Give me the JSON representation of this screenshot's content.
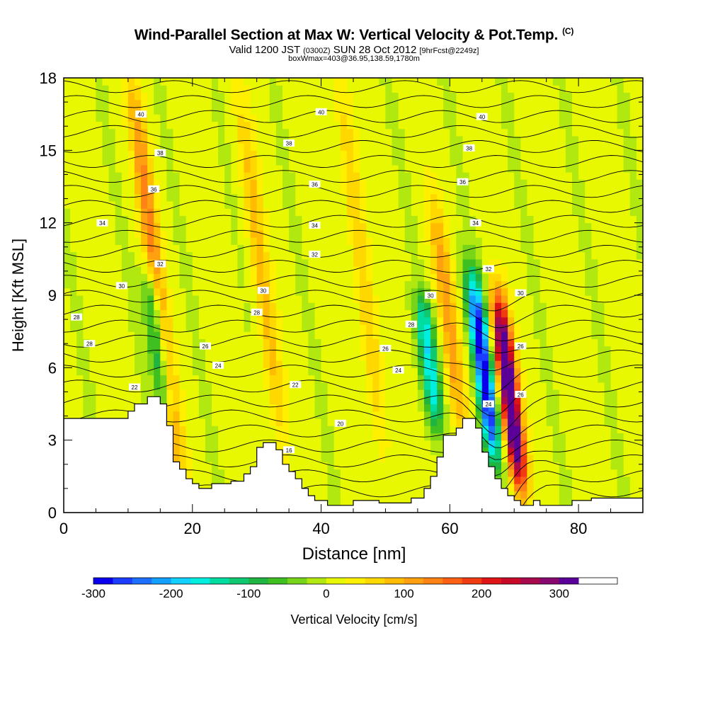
{
  "header": {
    "title": "Wind-Parallel Section at Max W: Vertical Velocity & Pot.Temp.",
    "copyright": "(C)",
    "valid_main": "Valid 1200 JST",
    "valid_utc": "(0300Z)",
    "valid_date": "SUN 28 Oct 2012",
    "forecast": "[9hrFcst@2249z]",
    "box_info": "boxWmax=403@36.95,138.59,1780m"
  },
  "chart_data": {
    "type": "contour",
    "title": "Wind-Parallel Section at Max W: Vertical Velocity & Pot.Temp.",
    "xlabel": "Distance [nm]",
    "ylabel": "Height [Kft MSL]",
    "xlim": [
      0,
      90
    ],
    "ylim": [
      0,
      18
    ],
    "x_ticks": [
      0,
      20,
      40,
      60,
      80
    ],
    "y_ticks": [
      0,
      3,
      6,
      9,
      12,
      15,
      18
    ],
    "colorbar": {
      "label": "Vertical Velocity [cm/s]",
      "range": [
        -300,
        375
      ],
      "step": 25,
      "tick_labels": [
        -300,
        -200,
        -100,
        0,
        100,
        200,
        300
      ],
      "colors": [
        "#0a00ee",
        "#1c3cff",
        "#1d70ff",
        "#12a0ff",
        "#12d0ff",
        "#00eee0",
        "#00dca0",
        "#10c870",
        "#20b440",
        "#40c020",
        "#78d418",
        "#b0e810",
        "#e8f800",
        "#fff000",
        "#ffd800",
        "#ffbc00",
        "#ffa010",
        "#ff8214",
        "#ff6014",
        "#f03c10",
        "#e01414",
        "#c80a28",
        "#a8084c",
        "#880870",
        "#5a0098"
      ]
    },
    "terrain_kft": [
      [
        0,
        3.9
      ],
      [
        10,
        3.9
      ],
      [
        10,
        4.2
      ],
      [
        11,
        4.2
      ],
      [
        11,
        4.5
      ],
      [
        13,
        4.5
      ],
      [
        13,
        4.8
      ],
      [
        15,
        4.8
      ],
      [
        15,
        4.5
      ],
      [
        16,
        4.5
      ],
      [
        16,
        3.6
      ],
      [
        17,
        3.6
      ],
      [
        17,
        2.1
      ],
      [
        18,
        2.1
      ],
      [
        18,
        1.8
      ],
      [
        19,
        1.8
      ],
      [
        19,
        1.4
      ],
      [
        20,
        1.4
      ],
      [
        20,
        1.2
      ],
      [
        21,
        1.2
      ],
      [
        21,
        1.0
      ],
      [
        23,
        1.0
      ],
      [
        23,
        1.2
      ],
      [
        26,
        1.2
      ],
      [
        26,
        1.3
      ],
      [
        28,
        1.3
      ],
      [
        28,
        1.6
      ],
      [
        29,
        1.6
      ],
      [
        29,
        1.9
      ],
      [
        30,
        1.9
      ],
      [
        30,
        2.7
      ],
      [
        31,
        2.7
      ],
      [
        31,
        2.9
      ],
      [
        33,
        2.9
      ],
      [
        33,
        2.6
      ],
      [
        34,
        2.6
      ],
      [
        34,
        2.0
      ],
      [
        35,
        2.0
      ],
      [
        35,
        1.7
      ],
      [
        36,
        1.7
      ],
      [
        36,
        1.4
      ],
      [
        37,
        1.4
      ],
      [
        37,
        1.0
      ],
      [
        38,
        1.0
      ],
      [
        38,
        0.7
      ],
      [
        39,
        0.7
      ],
      [
        39,
        0.5
      ],
      [
        41,
        0.5
      ],
      [
        41,
        0.3
      ],
      [
        45,
        0.3
      ],
      [
        45,
        0.5
      ],
      [
        49,
        0.5
      ],
      [
        49,
        0.4
      ],
      [
        54,
        0.4
      ],
      [
        54,
        0.6
      ],
      [
        56,
        0.6
      ],
      [
        56,
        1.0
      ],
      [
        57,
        1.0
      ],
      [
        57,
        1.5
      ],
      [
        58,
        1.5
      ],
      [
        58,
        2.3
      ],
      [
        59,
        2.3
      ],
      [
        59,
        3.2
      ],
      [
        61,
        3.2
      ],
      [
        61,
        3.5
      ],
      [
        62,
        3.5
      ],
      [
        62,
        3.9
      ],
      [
        64,
        3.9
      ],
      [
        64,
        3.5
      ],
      [
        65,
        3.5
      ],
      [
        65,
        2.5
      ],
      [
        66,
        2.5
      ],
      [
        66,
        1.9
      ],
      [
        67,
        1.9
      ],
      [
        67,
        1.4
      ],
      [
        68,
        1.4
      ],
      [
        68,
        1.0
      ],
      [
        69,
        1.0
      ],
      [
        69,
        0.7
      ],
      [
        70,
        0.7
      ],
      [
        70,
        0.5
      ],
      [
        71,
        0.5
      ],
      [
        71,
        0.3
      ],
      [
        73,
        0.3
      ],
      [
        73,
        0.5
      ],
      [
        74,
        0.5
      ],
      [
        74,
        0.3
      ],
      [
        79,
        0.3
      ],
      [
        79,
        0.5
      ],
      [
        82,
        0.5
      ],
      [
        82,
        0.6
      ],
      [
        90,
        0.6
      ]
    ],
    "theta_levels_labeled": [
      16,
      20,
      22,
      24,
      26,
      28,
      30,
      32,
      34,
      36,
      38,
      40
    ],
    "theta_labels": [
      {
        "text": "40",
        "x": 12,
        "y": 16.5
      },
      {
        "text": "40",
        "x": 40,
        "y": 16.6
      },
      {
        "text": "40",
        "x": 65,
        "y": 16.4
      },
      {
        "text": "38",
        "x": 15,
        "y": 14.9
      },
      {
        "text": "38",
        "x": 35,
        "y": 15.3
      },
      {
        "text": "38",
        "x": 63,
        "y": 15.1
      },
      {
        "text": "36",
        "x": 14,
        "y": 13.4
      },
      {
        "text": "36",
        "x": 39,
        "y": 13.6
      },
      {
        "text": "36",
        "x": 62,
        "y": 13.7
      },
      {
        "text": "34",
        "x": 6,
        "y": 12.0
      },
      {
        "text": "34",
        "x": 39,
        "y": 11.9
      },
      {
        "text": "34",
        "x": 64,
        "y": 12.0
      },
      {
        "text": "32",
        "x": 15,
        "y": 10.3
      },
      {
        "text": "32",
        "x": 39,
        "y": 10.7
      },
      {
        "text": "32",
        "x": 66,
        "y": 10.1
      },
      {
        "text": "30",
        "x": 9,
        "y": 9.4
      },
      {
        "text": "30",
        "x": 31,
        "y": 9.2
      },
      {
        "text": "30",
        "x": 57,
        "y": 9.0
      },
      {
        "text": "30",
        "x": 71,
        "y": 9.1
      },
      {
        "text": "28",
        "x": 2,
        "y": 8.1
      },
      {
        "text": "28",
        "x": 30,
        "y": 8.3
      },
      {
        "text": "28",
        "x": 54,
        "y": 7.8
      },
      {
        "text": "28",
        "x": 4,
        "y": 7.0
      },
      {
        "text": "26",
        "x": 22,
        "y": 6.9
      },
      {
        "text": "26",
        "x": 50,
        "y": 6.8
      },
      {
        "text": "26",
        "x": 71,
        "y": 6.9
      },
      {
        "text": "24",
        "x": 24,
        "y": 6.1
      },
      {
        "text": "24",
        "x": 52,
        "y": 5.9
      },
      {
        "text": "24",
        "x": 66,
        "y": 4.5
      },
      {
        "text": "26",
        "x": 71,
        "y": 4.9
      },
      {
        "text": "22",
        "x": 36,
        "y": 5.3
      },
      {
        "text": "22",
        "x": 11,
        "y": 5.2
      },
      {
        "text": "20",
        "x": 43,
        "y": 3.7
      },
      {
        "text": "16",
        "x": 35,
        "y": 2.6
      }
    ],
    "vv_features": [
      {
        "kind": "updraft",
        "x": 18,
        "zbot": 1.5,
        "ztop": 18,
        "peak": 125
      },
      {
        "kind": "updraft",
        "x": 34,
        "zbot": 2.5,
        "ztop": 17,
        "peak": 75
      },
      {
        "kind": "updraft",
        "x": 50,
        "zbot": 2,
        "ztop": 18,
        "peak": 75
      },
      {
        "kind": "updraft",
        "x": 62,
        "zbot": 3,
        "ztop": 13,
        "peak": 100
      },
      {
        "kind": "updraft",
        "x": 71,
        "zbot": 1,
        "ztop": 9,
        "peak": 375
      },
      {
        "kind": "downdraft",
        "x": 16,
        "zbot": 4,
        "ztop": 10,
        "peak": -150
      },
      {
        "kind": "downdraft",
        "x": 58,
        "zbot": 3.5,
        "ztop": 9,
        "peak": -175
      },
      {
        "kind": "downdraft",
        "x": 67,
        "zbot": 2,
        "ztop": 10,
        "peak": -300
      }
    ]
  }
}
